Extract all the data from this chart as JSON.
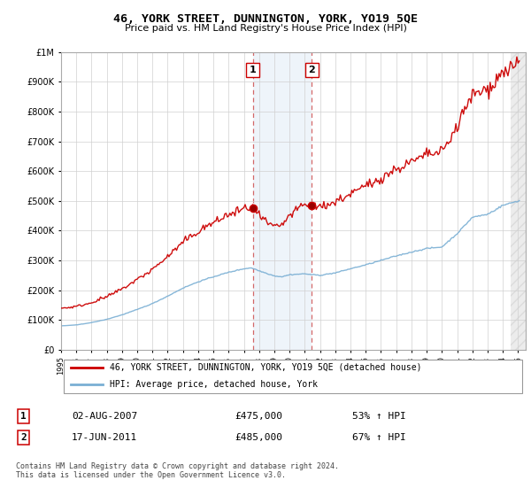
{
  "title": "46, YORK STREET, DUNNINGTON, YORK, YO19 5QE",
  "subtitle": "Price paid vs. HM Land Registry's House Price Index (HPI)",
  "legend_line1": "46, YORK STREET, DUNNINGTON, YORK, YO19 5QE (detached house)",
  "legend_line2": "HPI: Average price, detached house, York",
  "transaction1_date": "02-AUG-2007",
  "transaction1_price": "£475,000",
  "transaction1_pct": "53% ↑ HPI",
  "transaction2_date": "17-JUN-2011",
  "transaction2_price": "£485,000",
  "transaction2_pct": "67% ↑ HPI",
  "footnote1": "Contains HM Land Registry data © Crown copyright and database right 2024.",
  "footnote2": "This data is licensed under the Open Government Licence v3.0.",
  "red_color": "#cc0000",
  "blue_color": "#7aafd4",
  "shade_color": "#ddeeff",
  "transaction1_year": 2007.58,
  "transaction2_year": 2011.46,
  "ylim_max": 1000000,
  "ylim_min": 0,
  "xmin": 1995.0,
  "xmax": 2025.5
}
